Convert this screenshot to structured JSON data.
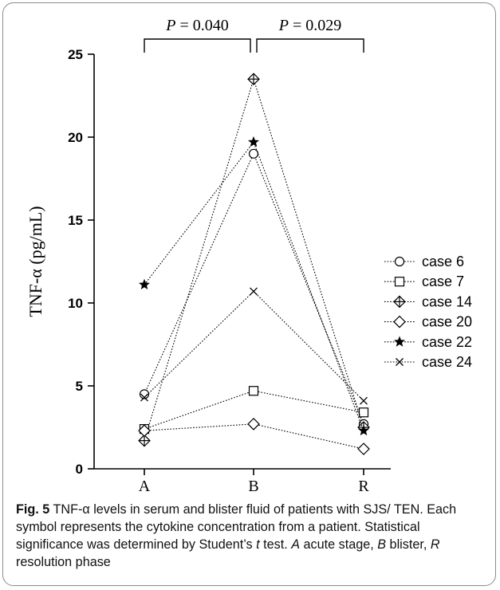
{
  "chart_data": {
    "type": "line",
    "categories": [
      "A",
      "B",
      "R"
    ],
    "ylabel": "TNF-α (pg/mL)",
    "ylim": [
      0,
      25
    ],
    "yticks": [
      "0",
      "5",
      "10",
      "15",
      "20",
      "25"
    ],
    "legend_position": "right",
    "series": [
      {
        "name": "case 6",
        "marker": "circle",
        "values": [
          4.5,
          19.0,
          2.7
        ]
      },
      {
        "name": "case 7",
        "marker": "square",
        "values": [
          2.4,
          4.7,
          3.4
        ]
      },
      {
        "name": "case 14",
        "marker": "diamond-plus",
        "values": [
          1.7,
          23.5,
          2.5
        ]
      },
      {
        "name": "case 20",
        "marker": "diamond",
        "values": [
          2.3,
          2.7,
          1.2
        ]
      },
      {
        "name": "case 22",
        "marker": "star",
        "values": [
          11.1,
          19.7,
          2.3
        ]
      },
      {
        "name": "case 24",
        "marker": "x",
        "values": [
          4.3,
          10.7,
          4.1
        ]
      }
    ],
    "annotations": [
      {
        "label": "P",
        "text": " = 0.040",
        "from": "A",
        "to": "B"
      },
      {
        "label": "P",
        "text": " = 0.029",
        "from": "B",
        "to": "R"
      }
    ]
  },
  "caption": {
    "fig_label": "Fig. 5",
    "text_1": "  TNF-α levels in serum and blister fluid of patients with SJS/ TEN. Each symbol represents the cytokine concentration from a patient. Statistical significance was determined by Student’s ",
    "t": "t",
    "text_2": " test. ",
    "a": "A",
    "text_3": " acute stage, ",
    "b": "B",
    "text_4": " blister, ",
    "r": "R",
    "text_5": " resolution phase"
  }
}
